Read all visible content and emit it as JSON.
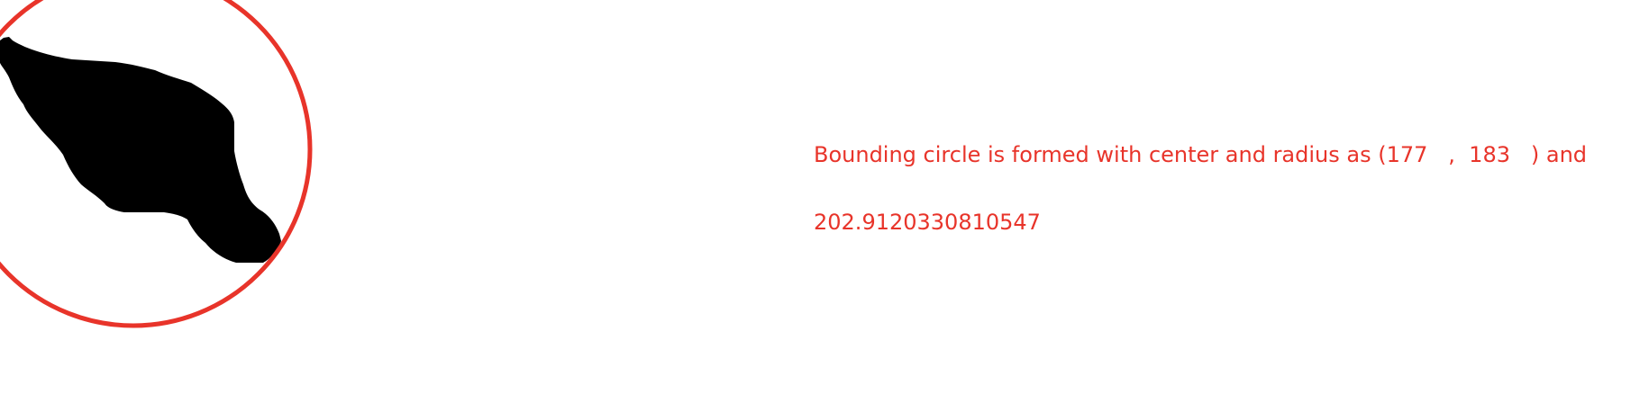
{
  "caption": {
    "line1": "Bounding circle is formed with center and radius as (177   ,  183   ) and",
    "line2": "202.9120330810547"
  },
  "colors": {
    "background": "#ffffff",
    "circle": "#e8342a",
    "text": "#e8342a",
    "shape": "#000000"
  }
}
